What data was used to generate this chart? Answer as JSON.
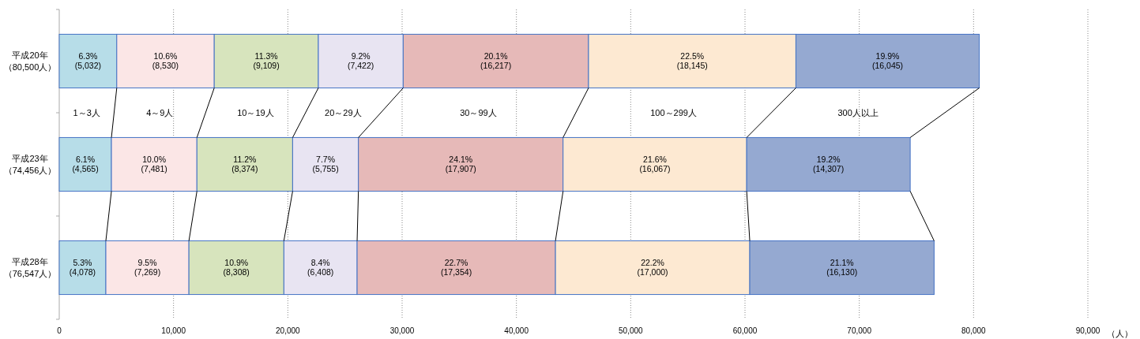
{
  "chart_data": {
    "type": "bar",
    "orientation": "horizontal",
    "stacked": true,
    "grid": "x",
    "categories": [
      "平成20年（80,500人）",
      "平成23年（74,456人）",
      "平成28年（76,547人）"
    ],
    "xlabel": "（人）",
    "xlim": [
      0,
      90000
    ],
    "xticks": [
      0,
      {
        "value": 10000,
        "label": "10,000"
      },
      {
        "value": 20000,
        "label": "20,000"
      },
      {
        "value": 30000,
        "label": "30,000"
      },
      {
        "value": 40000,
        "label": "40,000"
      },
      {
        "value": 50000,
        "label": "50,000"
      },
      {
        "value": 60000,
        "label": "60,000"
      },
      {
        "value": 70000,
        "label": "70,000"
      },
      {
        "value": 80000,
        "label": "80,000"
      },
      {
        "value": 90000,
        "label": "90,000"
      }
    ],
    "series": [
      {
        "name": "1～3人",
        "color": "#b7dde8",
        "values": [
          5032,
          4565,
          4078
        ],
        "value_labels": [
          "6.3%\n(5,032)",
          "6.1%\n(4,565)",
          "5.3%\n(4,078)"
        ]
      },
      {
        "name": "4～9人",
        "color": "#fbe6e6",
        "values": [
          8530,
          7481,
          7269
        ],
        "value_labels": [
          "10.6%\n(8,530)",
          "10.0%\n(7,481)",
          "9.5%\n(7,269)"
        ]
      },
      {
        "name": "10～19人",
        "color": "#d7e4bd",
        "values": [
          9109,
          8374,
          8308
        ],
        "value_labels": [
          "11.3%\n(9,109)",
          "11.2%\n(8,374)",
          "10.9%\n(8,308)"
        ]
      },
      {
        "name": "20～29人",
        "color": "#e8e4f2",
        "values": [
          7422,
          5755,
          6408
        ],
        "value_labels": [
          "9.2%\n(7,422)",
          "7.7%\n(5,755)",
          "8.4%\n(6,408)"
        ]
      },
      {
        "name": "30～99人",
        "color": "#e6b9b8",
        "values": [
          16217,
          17907,
          17354
        ],
        "value_labels": [
          "20.1%\n(16,217)",
          "24.1%\n(17,907)",
          "22.7%\n(17,354)"
        ]
      },
      {
        "name": "100～299人",
        "color": "#fde9d2",
        "values": [
          18145,
          16067,
          17000
        ],
        "value_labels": [
          "22.5%\n(18,145)",
          "21.6%\n(16,067)",
          "22.2%\n(17,000)"
        ]
      },
      {
        "name": "300人以上",
        "color": "#95a9d1",
        "values": [
          16045,
          14307,
          16130
        ],
        "value_labels": [
          "19.9%\n(16,045)",
          "19.2%\n(14,307)",
          "21.1%\n(16,130)"
        ]
      }
    ]
  }
}
